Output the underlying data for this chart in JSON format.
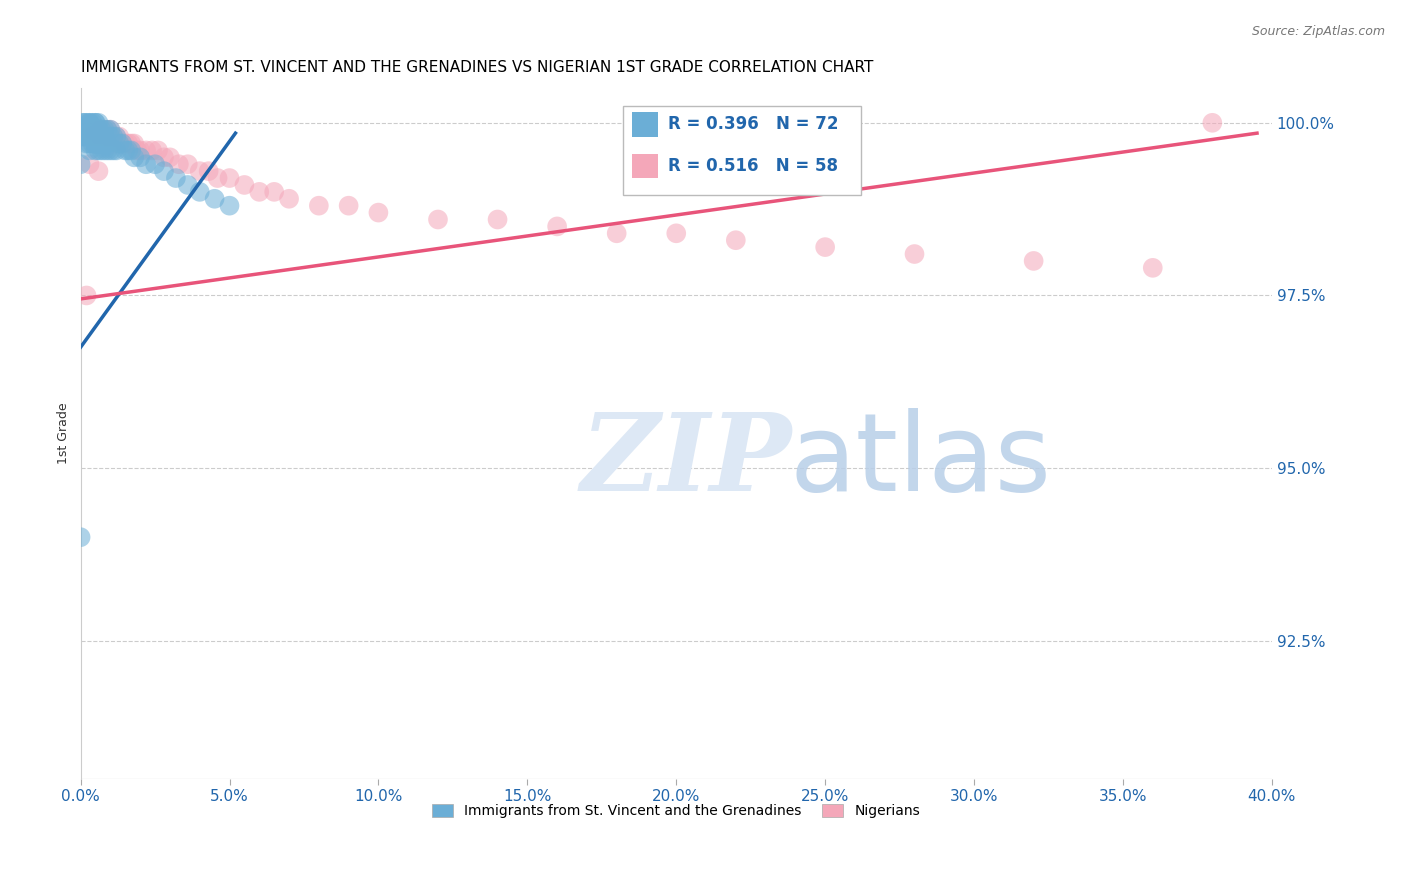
{
  "title": "IMMIGRANTS FROM ST. VINCENT AND THE GRENADINES VS NIGERIAN 1ST GRADE CORRELATION CHART",
  "source": "Source: ZipAtlas.com",
  "ylabel": "1st Grade",
  "ylabel_ticks": [
    "92.5%",
    "95.0%",
    "97.5%",
    "100.0%"
  ],
  "ylabel_tick_vals": [
    0.925,
    0.95,
    0.975,
    1.0
  ],
  "xlim": [
    0.0,
    0.4
  ],
  "ylim": [
    0.905,
    1.005
  ],
  "legend1_label": "Immigrants from St. Vincent and the Grenadines",
  "legend2_label": "Nigerians",
  "R1": 0.396,
  "N1": 72,
  "R2": 0.516,
  "N2": 58,
  "color_blue": "#6baed6",
  "color_pink": "#f4a7b9",
  "color_blue_line": "#2166ac",
  "color_pink_line": "#e8547a",
  "color_blue_text": "#2166ac",
  "grid_color": "#cccccc",
  "grid_style": "--",
  "background_color": "#ffffff",
  "blue_points_x": [
    0.0,
    0.0,
    0.001,
    0.001,
    0.001,
    0.001,
    0.002,
    0.002,
    0.002,
    0.002,
    0.003,
    0.003,
    0.003,
    0.003,
    0.003,
    0.003,
    0.004,
    0.004,
    0.004,
    0.004,
    0.004,
    0.005,
    0.005,
    0.005,
    0.005,
    0.005,
    0.005,
    0.006,
    0.006,
    0.006,
    0.006,
    0.006,
    0.007,
    0.007,
    0.007,
    0.007,
    0.008,
    0.008,
    0.008,
    0.008,
    0.009,
    0.009,
    0.009,
    0.01,
    0.01,
    0.01,
    0.011,
    0.011,
    0.012,
    0.012,
    0.013,
    0.014,
    0.015,
    0.016,
    0.017,
    0.018,
    0.02,
    0.022,
    0.025,
    0.028,
    0.032,
    0.036,
    0.04,
    0.045,
    0.05,
    0.0,
    0.001,
    0.002,
    0.003,
    0.004,
    0.005,
    0.006
  ],
  "blue_points_y": [
    0.998,
    0.994,
    1.0,
    1.0,
    0.999,
    0.998,
    1.0,
    0.999,
    0.998,
    0.997,
    1.0,
    1.0,
    0.999,
    0.998,
    0.997,
    0.996,
    1.0,
    0.999,
    0.999,
    0.998,
    0.997,
    1.0,
    1.0,
    0.999,
    0.998,
    0.997,
    0.996,
    1.0,
    0.999,
    0.998,
    0.997,
    0.996,
    0.999,
    0.998,
    0.997,
    0.996,
    0.999,
    0.998,
    0.997,
    0.996,
    0.999,
    0.997,
    0.996,
    0.999,
    0.998,
    0.996,
    0.998,
    0.996,
    0.998,
    0.996,
    0.997,
    0.997,
    0.996,
    0.996,
    0.996,
    0.995,
    0.995,
    0.994,
    0.994,
    0.993,
    0.992,
    0.991,
    0.99,
    0.989,
    0.988,
    0.94,
    0.999,
    0.999,
    0.998,
    0.998,
    0.997,
    0.997
  ],
  "pink_points_x": [
    0.002,
    0.003,
    0.004,
    0.004,
    0.005,
    0.005,
    0.006,
    0.007,
    0.007,
    0.008,
    0.008,
    0.009,
    0.009,
    0.01,
    0.01,
    0.011,
    0.011,
    0.012,
    0.013,
    0.013,
    0.014,
    0.015,
    0.016,
    0.017,
    0.018,
    0.019,
    0.02,
    0.022,
    0.024,
    0.026,
    0.028,
    0.03,
    0.033,
    0.036,
    0.04,
    0.043,
    0.046,
    0.05,
    0.055,
    0.06,
    0.065,
    0.07,
    0.08,
    0.09,
    0.1,
    0.12,
    0.14,
    0.16,
    0.18,
    0.2,
    0.22,
    0.25,
    0.28,
    0.32,
    0.36,
    0.38,
    0.003,
    0.006
  ],
  "pink_points_y": [
    0.975,
    0.998,
    0.999,
    0.998,
    0.999,
    0.998,
    0.999,
    0.999,
    0.998,
    0.999,
    0.998,
    0.999,
    0.998,
    0.999,
    0.998,
    0.998,
    0.997,
    0.998,
    0.998,
    0.997,
    0.997,
    0.997,
    0.997,
    0.997,
    0.997,
    0.996,
    0.996,
    0.996,
    0.996,
    0.996,
    0.995,
    0.995,
    0.994,
    0.994,
    0.993,
    0.993,
    0.992,
    0.992,
    0.991,
    0.99,
    0.99,
    0.989,
    0.988,
    0.988,
    0.987,
    0.986,
    0.986,
    0.985,
    0.984,
    0.984,
    0.983,
    0.982,
    0.981,
    0.98,
    0.979,
    1.0,
    0.994,
    0.993
  ],
  "blue_line_x0": 0.0,
  "blue_line_x1": 0.052,
  "blue_line_y0": 0.9675,
  "blue_line_y1": 0.9985,
  "pink_line_x0": 0.0,
  "pink_line_x1": 0.395,
  "pink_line_y0": 0.9745,
  "pink_line_y1": 0.9985
}
